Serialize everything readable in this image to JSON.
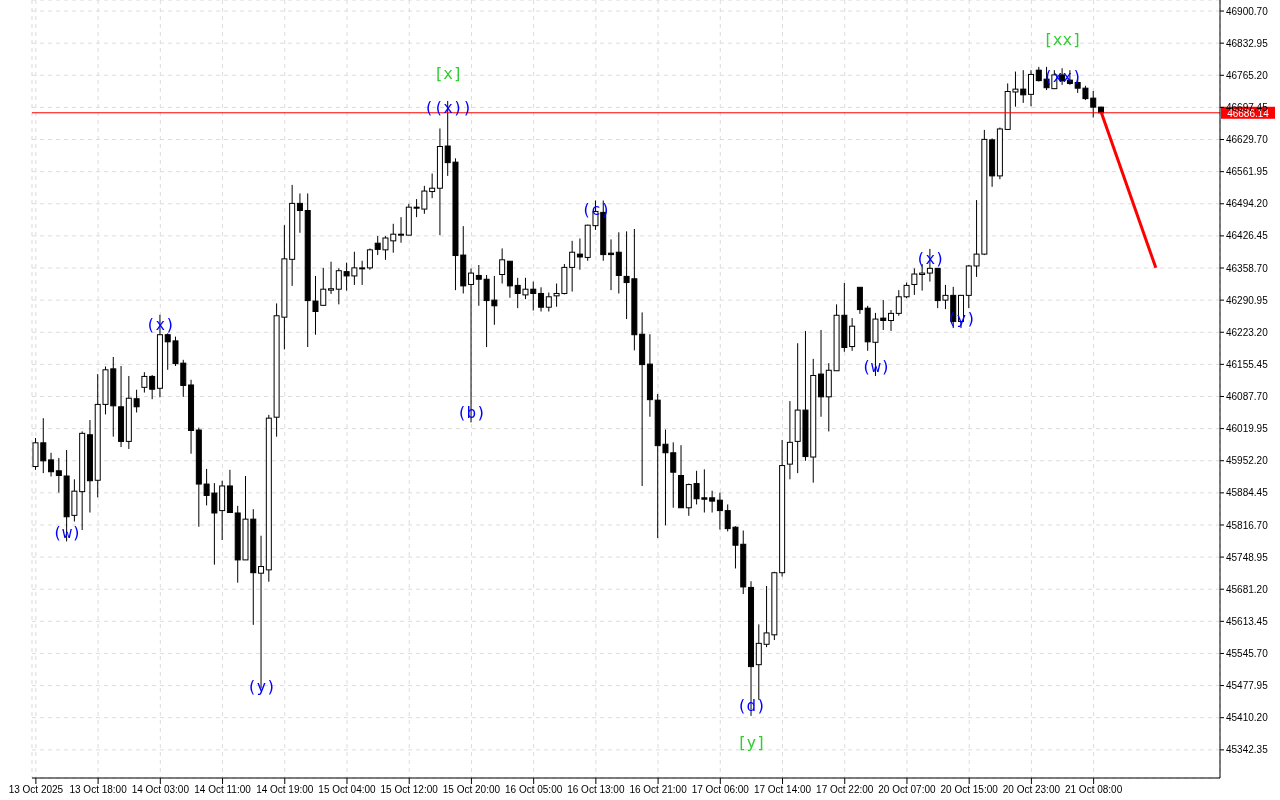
{
  "chart_data": {
    "type": "candlestick",
    "categories": [
      "13 Oct 2025",
      null,
      null,
      null,
      null,
      null,
      null,
      null,
      "13 Oct 18:00",
      null,
      null,
      null,
      null,
      null,
      null,
      null,
      "14 Oct 03:00",
      null,
      null,
      null,
      null,
      null,
      null,
      null,
      "14 Oct 11:00",
      null,
      null,
      null,
      null,
      null,
      null,
      null,
      "14 Oct 19:00",
      null,
      null,
      null,
      null,
      null,
      null,
      null,
      "15 Oct 04:00",
      null,
      null,
      null,
      null,
      null,
      null,
      null,
      "15 Oct 12:00",
      null,
      null,
      null,
      null,
      null,
      null,
      null,
      "15 Oct 20:00",
      null,
      null,
      null,
      null,
      null,
      null,
      null,
      "16 Oct 05:00",
      null,
      null,
      null,
      null,
      null,
      null,
      null,
      "16 Oct 13:00",
      null,
      null,
      null,
      null,
      null,
      null,
      null,
      "16 Oct 21:00",
      null,
      null,
      null,
      null,
      null,
      null,
      null,
      "17 Oct 06:00",
      null,
      null,
      null,
      null,
      null,
      null,
      null,
      "17 Oct 14:00",
      null,
      null,
      null,
      null,
      null,
      null,
      null,
      "17 Oct 22:00",
      null,
      null,
      null,
      null,
      null,
      null,
      null,
      "20 Oct 07:00",
      null,
      null,
      null,
      null,
      null,
      null,
      null,
      "20 Oct 15:00",
      null,
      null,
      null,
      null,
      null,
      null,
      null,
      "20 Oct 23:00",
      null,
      null,
      null,
      null,
      null,
      null,
      null,
      "21 Oct 08:00",
      null,
      null,
      null,
      null,
      null,
      null,
      null,
      null,
      null,
      null,
      null,
      null,
      null,
      null,
      null,
      null
    ],
    "ohlc": [
      [
        45940,
        46000,
        45933,
        45990
      ],
      [
        45990,
        46042,
        45926,
        45952
      ],
      [
        45954,
        45969,
        45919,
        45929
      ],
      [
        45931,
        45958,
        45885,
        45921
      ],
      [
        45920,
        45975,
        45782,
        45834
      ],
      [
        45837,
        45913,
        45824,
        45888
      ],
      [
        45887,
        46014,
        45806,
        46010
      ],
      [
        46007,
        46038,
        45843,
        45910
      ],
      [
        45911,
        46135,
        45875,
        46071
      ],
      [
        46071,
        46151,
        46050,
        46144
      ],
      [
        46146,
        46171,
        46003,
        46068
      ],
      [
        46066,
        46152,
        45981,
        45993
      ],
      [
        45993,
        46131,
        45977,
        46084
      ],
      [
        46083,
        46102,
        46054,
        46066
      ],
      [
        46107,
        46139,
        46096,
        46130
      ],
      [
        46130,
        46133,
        46082,
        46103
      ],
      [
        46105,
        46260,
        46086,
        46218
      ],
      [
        46218,
        46221,
        46144,
        46203
      ],
      [
        46205,
        46214,
        46152,
        46157
      ],
      [
        46158,
        46165,
        46087,
        46111
      ],
      [
        46112,
        46123,
        45967,
        46016
      ],
      [
        46017,
        46022,
        45813,
        45903
      ],
      [
        45903,
        45935,
        45858,
        45879
      ],
      [
        45884,
        45905,
        45733,
        45842
      ],
      [
        45847,
        45910,
        45785,
        45899
      ],
      [
        45899,
        45933,
        45842,
        45843
      ],
      [
        45842,
        45857,
        45695,
        45743
      ],
      [
        45743,
        45920,
        45743,
        45829
      ],
      [
        45829,
        45850,
        45606,
        45716
      ],
      [
        45715,
        45794,
        45472,
        45729
      ],
      [
        45722,
        46049,
        45697,
        46042
      ],
      [
        46044,
        46284,
        46003,
        46258
      ],
      [
        46255,
        46449,
        46187,
        46378
      ],
      [
        46377,
        46534,
        46321,
        46495
      ],
      [
        46495,
        46516,
        46433,
        46480
      ],
      [
        46480,
        46516,
        46192,
        46290
      ],
      [
        46289,
        46342,
        46218,
        46267
      ],
      [
        46280,
        46359,
        46279,
        46314
      ],
      [
        46312,
        46372,
        46304,
        46315
      ],
      [
        46314,
        46358,
        46282,
        46353
      ],
      [
        46351,
        46370,
        46311,
        46342
      ],
      [
        46342,
        46393,
        46323,
        46359
      ],
      [
        46357,
        46374,
        46323,
        46359
      ],
      [
        46359,
        46400,
        46355,
        46397
      ],
      [
        46411,
        46426,
        46386,
        46398
      ],
      [
        46397,
        46426,
        46376,
        46422
      ],
      [
        46416,
        46452,
        46391,
        46430
      ],
      [
        46429,
        46466,
        46412,
        46430
      ],
      [
        46428,
        46494,
        46428,
        46487
      ],
      [
        46487,
        46504,
        46466,
        46485
      ],
      [
        46483,
        46532,
        46473,
        46521
      ],
      [
        46520,
        46558,
        46506,
        46527
      ],
      [
        46527,
        46653,
        46428,
        46615
      ],
      [
        46616,
        46711,
        46553,
        46581
      ],
      [
        46582,
        46590,
        46312,
        46385
      ],
      [
        46386,
        46447,
        46305,
        46321
      ],
      [
        46324,
        46358,
        46033,
        46348
      ],
      [
        46343,
        46365,
        46279,
        46335
      ],
      [
        46335,
        46344,
        46192,
        46290
      ],
      [
        46291,
        46342,
        46239,
        46279
      ],
      [
        46345,
        46400,
        46326,
        46376
      ],
      [
        46373,
        46373,
        46296,
        46321
      ],
      [
        46322,
        46338,
        46274,
        46305
      ],
      [
        46302,
        46338,
        46293,
        46314
      ],
      [
        46314,
        46330,
        46269,
        46305
      ],
      [
        46305,
        46318,
        46267,
        46276
      ],
      [
        46276,
        46307,
        46267,
        46298
      ],
      [
        46300,
        46326,
        46277,
        46305
      ],
      [
        46305,
        46367,
        46303,
        46360
      ],
      [
        46360,
        46416,
        46309,
        46392
      ],
      [
        46388,
        46421,
        46355,
        46382
      ],
      [
        46381,
        46450,
        46374,
        46449
      ],
      [
        46448,
        46501,
        46439,
        46478
      ],
      [
        46476,
        46501,
        46374,
        46387
      ],
      [
        46390,
        46419,
        46312,
        46387
      ],
      [
        46392,
        46434,
        46305,
        46343
      ],
      [
        46341,
        46436,
        46251,
        46328
      ],
      [
        46336,
        46441,
        46185,
        46218
      ],
      [
        46219,
        46265,
        45899,
        46155
      ],
      [
        46156,
        46219,
        46045,
        46081
      ],
      [
        46080,
        46093,
        45789,
        45984
      ],
      [
        45987,
        46018,
        45816,
        45969
      ],
      [
        45969,
        45991,
        45853,
        45928
      ],
      [
        45921,
        45985,
        45853,
        45853
      ],
      [
        45853,
        45904,
        45836,
        45902
      ],
      [
        45904,
        45931,
        45860,
        45872
      ],
      [
        45874,
        45934,
        45843,
        45871
      ],
      [
        45874,
        45889,
        45843,
        45867
      ],
      [
        45869,
        45885,
        45807,
        45847
      ],
      [
        45847,
        45860,
        45803,
        45809
      ],
      [
        45812,
        45814,
        45725,
        45774
      ],
      [
        45776,
        45805,
        45671,
        45686
      ],
      [
        45685,
        45698,
        45414,
        45518
      ],
      [
        45522,
        45607,
        45448,
        45567
      ],
      [
        45565,
        45688,
        45559,
        45589
      ],
      [
        45585,
        45718,
        45574,
        45716
      ],
      [
        45716,
        45996,
        45708,
        45942
      ],
      [
        45945,
        46078,
        45913,
        45991
      ],
      [
        45993,
        46200,
        45926,
        46059
      ],
      [
        46059,
        46226,
        45952,
        45961
      ],
      [
        45960,
        46167,
        45906,
        46132
      ],
      [
        46135,
        46228,
        46045,
        46087
      ],
      [
        46087,
        46158,
        46014,
        46143
      ],
      [
        46142,
        46282,
        46142,
        46259
      ],
      [
        46259,
        46327,
        46182,
        46191
      ],
      [
        46193,
        46253,
        46184,
        46236
      ],
      [
        46318,
        46318,
        46262,
        46271
      ],
      [
        46274,
        46279,
        46184,
        46203
      ],
      [
        46202,
        46264,
        46131,
        46251
      ],
      [
        46253,
        46291,
        46228,
        46248
      ],
      [
        46248,
        46270,
        46226,
        46263
      ],
      [
        46263,
        46312,
        46258,
        46298
      ],
      [
        46298,
        46328,
        46295,
        46322
      ],
      [
        46324,
        46358,
        46302,
        46346
      ],
      [
        46345,
        46367,
        46311,
        46348
      ],
      [
        46348,
        46399,
        46330,
        46358
      ],
      [
        46358,
        46358,
        46274,
        46290
      ],
      [
        46291,
        46323,
        46272,
        46301
      ],
      [
        46301,
        46319,
        46232,
        46246
      ],
      [
        46246,
        46302,
        46232,
        46301
      ],
      [
        46301,
        46365,
        46274,
        46363
      ],
      [
        46363,
        46502,
        46340,
        46388
      ],
      [
        46388,
        46650,
        46386,
        46630
      ],
      [
        46629,
        46632,
        46530,
        46553
      ],
      [
        46553,
        46655,
        46546,
        46652
      ],
      [
        46651,
        46748,
        46651,
        46731
      ],
      [
        46730,
        46773,
        46699,
        46736
      ],
      [
        46736,
        46776,
        46707,
        46724
      ],
      [
        46725,
        46776,
        46700,
        46767
      ],
      [
        46776,
        46783,
        46752,
        46754
      ],
      [
        46757,
        46783,
        46734,
        46739
      ],
      [
        46737,
        46776,
        46736,
        46766
      ],
      [
        46766,
        46780,
        46745,
        46754
      ],
      [
        46755,
        46776,
        46745,
        46748
      ],
      [
        46750,
        46757,
        46728,
        46738
      ],
      [
        46738,
        46743,
        46713,
        46716
      ],
      [
        46717,
        46732,
        46676,
        46698
      ],
      [
        46698,
        46699,
        46686,
        46686
      ],
      null,
      null,
      null,
      null,
      null,
      null,
      null,
      null,
      null,
      null,
      null,
      null,
      null,
      null,
      null
    ],
    "series": [
      {
        "type": "line",
        "color": "#ff0000",
        "values": [
          null,
          null,
          null,
          null,
          null,
          null,
          null,
          null,
          null,
          null,
          null,
          null,
          null,
          null,
          null,
          null,
          null,
          null,
          null,
          null,
          null,
          null,
          null,
          null,
          null,
          null,
          null,
          null,
          null,
          null,
          null,
          null,
          null,
          null,
          null,
          null,
          null,
          null,
          null,
          null,
          null,
          null,
          null,
          null,
          null,
          null,
          null,
          null,
          null,
          null,
          null,
          null,
          null,
          null,
          null,
          null,
          null,
          null,
          null,
          null,
          null,
          null,
          null,
          null,
          null,
          null,
          null,
          null,
          null,
          null,
          null,
          null,
          null,
          null,
          null,
          null,
          null,
          null,
          null,
          null,
          null,
          null,
          null,
          null,
          null,
          null,
          null,
          null,
          null,
          null,
          null,
          null,
          null,
          null,
          null,
          null,
          null,
          null,
          null,
          null,
          null,
          null,
          null,
          null,
          null,
          null,
          null,
          null,
          null,
          null,
          null,
          null,
          null,
          null,
          null,
          null,
          null,
          null,
          null,
          null,
          null,
          null,
          null,
          null,
          null,
          null,
          null,
          null,
          null,
          null,
          null,
          null,
          null,
          null,
          null,
          null,
          null,
          46686,
          null,
          null,
          null,
          null,
          null,
          null,
          46359,
          null,
          null,
          null,
          null,
          null,
          null,
          null,
          null
        ]
      }
    ],
    "ylim": [
      45283,
      46924
    ],
    "yticks": [
      {
        "value": 46900.7,
        "label": "46900.70"
      },
      46832.95,
      {
        "value": 46765.2,
        "label": "46765.20"
      },
      46697.45,
      {
        "value": 46629.7,
        "label": "46629.70"
      },
      46561.95,
      {
        "value": 46494.2,
        "label": "46494.20"
      },
      46426.45,
      {
        "value": 46358.7,
        "label": "46358.70"
      },
      46290.95,
      {
        "value": 46223.2,
        "label": "46223.20"
      },
      46155.45,
      {
        "value": 46087.7,
        "label": "46087.70"
      },
      46019.95,
      {
        "value": 45952.2,
        "label": "45952.20"
      },
      45884.45,
      {
        "value": 45816.7,
        "label": "45816.70"
      },
      45748.95,
      {
        "value": 45681.2,
        "label": "45681.20"
      },
      45613.45,
      {
        "value": 45545.7,
        "label": "45545.70"
      },
      45477.95,
      {
        "value": 45410.2,
        "label": "45410.20"
      },
      45342.35
    ],
    "ref_lines": [
      {
        "axis": "y",
        "value": 46686.14,
        "label": "46686.14",
        "color": "#ff0000"
      }
    ],
    "grid": true,
    "annotations": [
      "(w)",
      "(x)",
      "(y)",
      "[x]",
      "((x))",
      "(b)",
      "(c)",
      "(d)",
      "[y]",
      "(w)",
      "(x)",
      "(y)",
      "(xx)",
      "[xx]"
    ]
  }
}
